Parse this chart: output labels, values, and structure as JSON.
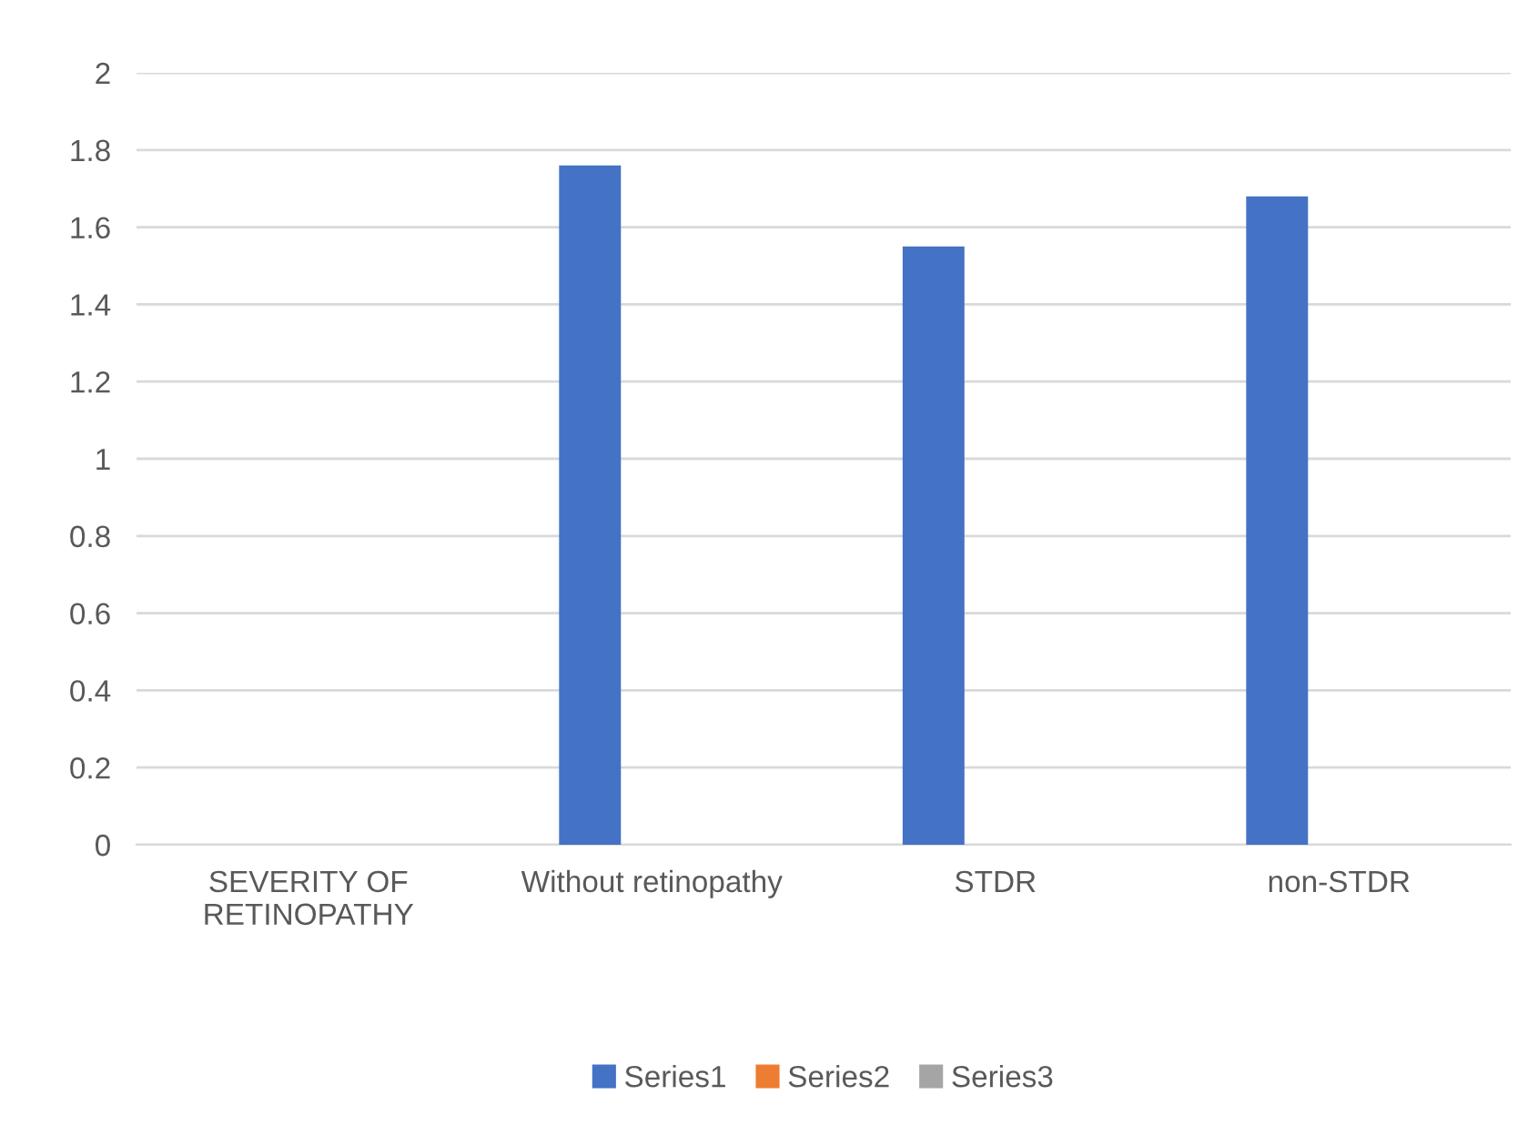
{
  "chart_data": {
    "type": "bar",
    "categories": [
      "SEVERITY OF\nRETINOPATHY",
      "Without retinopathy",
      "STDR",
      "non-STDR"
    ],
    "series": [
      {
        "name": "Series1",
        "color": "#4472c4",
        "values": [
          null,
          1.76,
          1.55,
          1.68
        ]
      },
      {
        "name": "Series2",
        "color": "#ed7d31",
        "values": [
          null,
          null,
          null,
          null
        ]
      },
      {
        "name": "Series3",
        "color": "#a5a5a5",
        "values": [
          null,
          null,
          null,
          null
        ]
      }
    ],
    "ylim": [
      0,
      2
    ],
    "yticks": [
      0,
      0.2,
      0.4,
      0.6,
      0.8,
      1,
      1.2,
      1.4,
      1.6,
      1.8,
      2
    ],
    "grid": "y",
    "legend": "bottom"
  }
}
